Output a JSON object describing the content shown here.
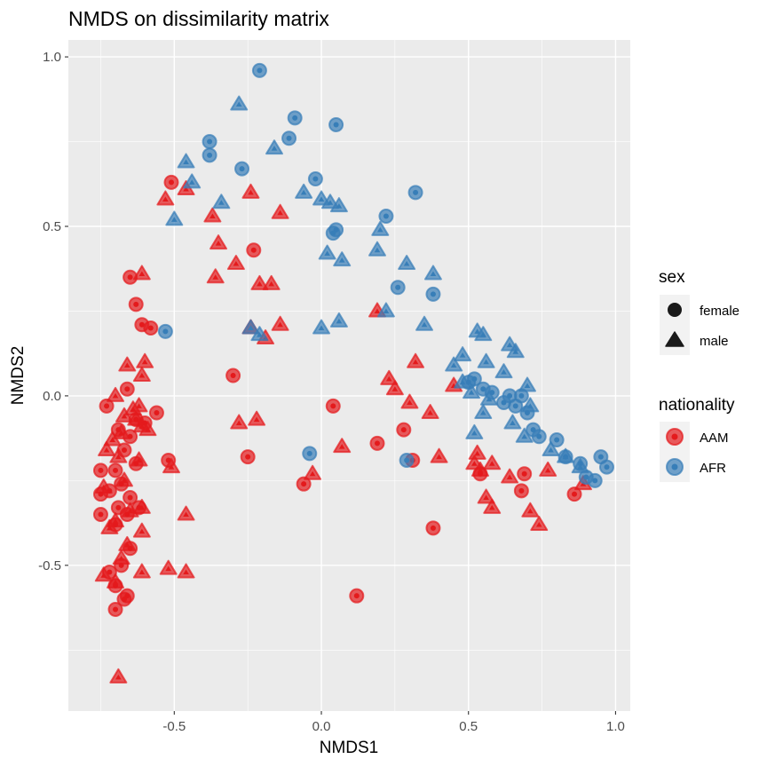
{
  "chart_data": {
    "type": "scatter",
    "title": "NMDS on dissimilarity matrix",
    "xlabel": "NMDS1",
    "ylabel": "NMDS2",
    "xlim": [
      -0.86,
      1.05
    ],
    "ylim": [
      -0.93,
      1.05
    ],
    "x_ticks": [
      -0.5,
      0.0,
      0.5,
      1.0
    ],
    "x_tick_labels": [
      "-0.5",
      "0.0",
      "0.5",
      "1.0"
    ],
    "y_ticks": [
      -0.5,
      0.0,
      0.5,
      1.0
    ],
    "y_tick_labels": [
      "-0.5",
      "0.0",
      "0.5",
      "1.0"
    ],
    "grid": true,
    "legends": [
      {
        "title": "sex",
        "entries": [
          {
            "label": "female",
            "shape": "circle"
          },
          {
            "label": "male",
            "shape": "triangle"
          }
        ]
      },
      {
        "title": "nationality",
        "entries": [
          {
            "label": "AAM",
            "color": "#e41a1c"
          },
          {
            "label": "AFR",
            "color": "#377eb8"
          }
        ]
      }
    ],
    "legend_position": "right",
    "series": [
      {
        "name": "AAM",
        "sex": "female",
        "color": "#e41a1c",
        "x": [
          -0.65,
          -0.63,
          -0.61,
          -0.58,
          -0.73,
          -0.66,
          -0.63,
          -0.65,
          -0.6,
          -0.56,
          -0.69,
          -0.67,
          -0.63,
          -0.7,
          -0.52,
          -0.75,
          -0.72,
          -0.68,
          -0.65,
          -0.75,
          -0.69,
          -0.66,
          -0.62,
          -0.75,
          -0.7,
          -0.65,
          -0.68,
          -0.72,
          -0.66,
          -0.7,
          -0.67,
          -0.7,
          -0.51,
          -0.23,
          -0.3,
          -0.25,
          0.04,
          0.28,
          0.19,
          -0.06,
          0.12,
          0.38,
          0.31,
          0.68,
          0.86,
          0.69,
          0.54
        ],
        "y": [
          0.35,
          0.27,
          0.21,
          0.2,
          -0.03,
          0.02,
          -0.07,
          -0.12,
          -0.08,
          -0.05,
          -0.1,
          -0.16,
          -0.2,
          -0.22,
          -0.19,
          -0.22,
          -0.28,
          -0.26,
          -0.3,
          -0.29,
          -0.33,
          -0.35,
          -0.33,
          -0.35,
          -0.38,
          -0.45,
          -0.5,
          -0.52,
          -0.59,
          -0.56,
          -0.6,
          -0.63,
          0.63,
          0.43,
          0.06,
          -0.18,
          -0.03,
          -0.1,
          -0.14,
          -0.26,
          -0.59,
          -0.39,
          -0.19,
          -0.28,
          -0.29,
          -0.23,
          -0.23
        ]
      },
      {
        "name": "AAM",
        "sex": "male",
        "color": "#e41a1c",
        "x": [
          -0.61,
          -0.6,
          -0.66,
          -0.61,
          -0.7,
          -0.62,
          -0.64,
          -0.67,
          -0.63,
          -0.61,
          -0.59,
          -0.68,
          -0.71,
          -0.73,
          -0.69,
          -0.62,
          -0.51,
          -0.67,
          -0.74,
          -0.61,
          -0.65,
          -0.7,
          -0.72,
          -0.46,
          -0.61,
          -0.66,
          -0.68,
          -0.74,
          -0.7,
          -0.61,
          -0.52,
          -0.46,
          -0.69,
          -0.53,
          -0.46,
          -0.37,
          -0.35,
          -0.36,
          -0.29,
          -0.24,
          -0.21,
          -0.14,
          -0.17,
          -0.24,
          -0.19,
          -0.14,
          -0.28,
          -0.22,
          0.07,
          -0.03,
          0.19,
          0.23,
          0.32,
          0.25,
          0.3,
          0.37,
          0.4,
          0.52,
          0.56,
          0.58,
          0.54,
          0.64,
          0.74,
          0.71,
          0.53,
          0.58,
          0.45,
          0.77,
          0.89
        ],
        "y": [
          0.36,
          0.1,
          0.09,
          0.06,
          0.0,
          -0.03,
          -0.04,
          -0.06,
          -0.07,
          -0.09,
          -0.1,
          -0.11,
          -0.13,
          -0.16,
          -0.18,
          -0.19,
          -0.21,
          -0.25,
          -0.27,
          -0.33,
          -0.34,
          -0.37,
          -0.39,
          -0.35,
          -0.4,
          -0.44,
          -0.48,
          -0.53,
          -0.55,
          -0.52,
          -0.51,
          -0.52,
          -0.83,
          0.58,
          0.61,
          0.53,
          0.45,
          0.35,
          0.39,
          0.6,
          0.33,
          0.54,
          0.33,
          0.2,
          0.17,
          0.21,
          -0.08,
          -0.07,
          -0.15,
          -0.23,
          0.25,
          0.05,
          0.1,
          0.02,
          -0.02,
          -0.05,
          -0.18,
          -0.2,
          -0.3,
          -0.33,
          -0.22,
          -0.24,
          -0.38,
          -0.34,
          -0.17,
          -0.2,
          0.03,
          -0.22,
          -0.26
        ]
      },
      {
        "name": "AFR",
        "sex": "female",
        "color": "#377eb8",
        "x": [
          -0.21,
          -0.38,
          -0.38,
          -0.27,
          -0.09,
          -0.11,
          0.05,
          -0.02,
          0.22,
          0.05,
          0.32,
          0.26,
          0.38,
          -0.53,
          0.5,
          0.52,
          0.55,
          0.58,
          0.62,
          0.64,
          0.68,
          0.66,
          0.7,
          0.72,
          0.74,
          0.8,
          0.83,
          0.88,
          0.9,
          0.95,
          0.97,
          0.93,
          0.29,
          0.04,
          -0.04
        ],
        "y": [
          0.96,
          0.75,
          0.71,
          0.67,
          0.82,
          0.76,
          0.8,
          0.64,
          0.53,
          0.49,
          0.6,
          0.32,
          0.3,
          0.19,
          0.04,
          0.05,
          0.02,
          0.01,
          -0.02,
          0.0,
          0.0,
          -0.03,
          -0.05,
          -0.1,
          -0.12,
          -0.13,
          -0.18,
          -0.2,
          -0.24,
          -0.18,
          -0.21,
          -0.25,
          -0.19,
          0.48,
          -0.17
        ]
      },
      {
        "name": "AFR",
        "sex": "male",
        "color": "#377eb8",
        "x": [
          -0.28,
          -0.46,
          -0.44,
          -0.5,
          -0.34,
          -0.16,
          -0.06,
          0.0,
          0.03,
          0.06,
          0.2,
          0.19,
          0.29,
          0.38,
          0.02,
          0.07,
          0.22,
          0.35,
          -0.24,
          -0.21,
          0.0,
          0.06,
          0.53,
          0.55,
          0.64,
          0.66,
          0.48,
          0.45,
          0.56,
          0.62,
          0.7,
          0.48,
          0.51,
          0.57,
          0.71,
          0.78,
          0.83,
          0.88,
          0.65,
          0.69,
          0.52,
          0.55
        ],
        "y": [
          0.86,
          0.69,
          0.63,
          0.52,
          0.57,
          0.73,
          0.6,
          0.58,
          0.57,
          0.56,
          0.49,
          0.43,
          0.39,
          0.36,
          0.42,
          0.4,
          0.25,
          0.21,
          0.2,
          0.18,
          0.2,
          0.22,
          0.19,
          0.18,
          0.15,
          0.13,
          0.12,
          0.09,
          0.1,
          0.07,
          0.03,
          0.04,
          0.01,
          -0.01,
          -0.03,
          -0.16,
          -0.18,
          -0.21,
          -0.08,
          -0.12,
          -0.11,
          -0.05
        ]
      }
    ]
  }
}
